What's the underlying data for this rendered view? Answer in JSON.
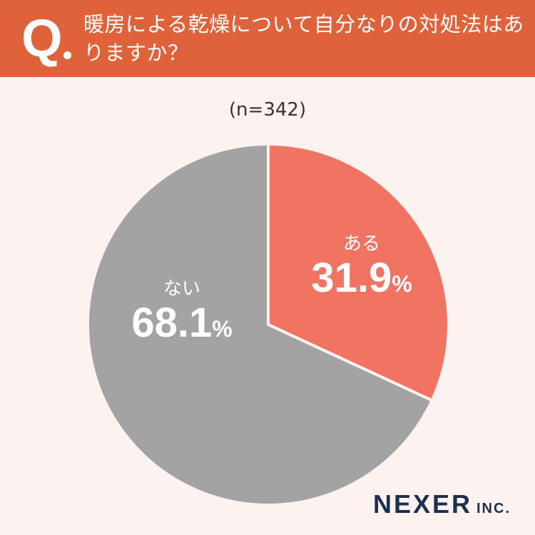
{
  "header": {
    "q_mark": "Q",
    "question": "暖房による乾燥について自分なりの対処法はありますか？"
  },
  "chart_data": {
    "type": "pie",
    "sample_label": "(n=342)",
    "unit": "%",
    "slices": [
      {
        "label": "ある",
        "value": 31.9,
        "color": "#f07461"
      },
      {
        "label": "ない",
        "value": 68.1,
        "color": "#a3a3a3"
      }
    ]
  },
  "brand": {
    "name": "NEXER",
    "suffix": "INC."
  }
}
